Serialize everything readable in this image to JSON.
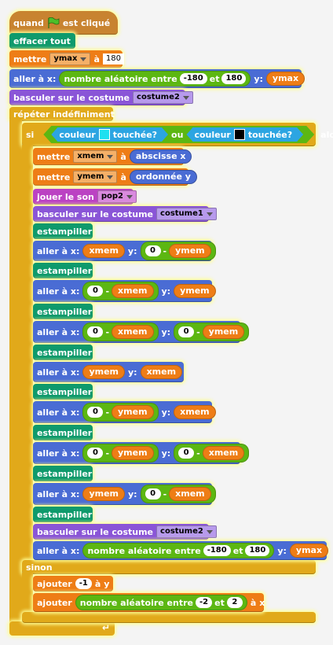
{
  "colors": {
    "events": "#c88330",
    "pen": "#0e9a6c",
    "data": "#ee7d16",
    "motion": "#4a6cd4",
    "looks": "#8a55d7",
    "sound": "#bb42c3",
    "control": "#e1a91a",
    "sensing": "#2ca5e2",
    "operators": "#5cb712",
    "swatch_cyan": "#1ee0f0",
    "swatch_black": "#000000"
  },
  "icons": {
    "flag": "green-flag-icon",
    "dropdown": "dropdown-arrow-icon",
    "loop": "loop-arrow-icon"
  },
  "script": {
    "hat": {
      "quand": "quand",
      "est_clique": "est cliqué"
    },
    "effacer": "effacer tout",
    "mettre1": {
      "label": "mettre",
      "var": "ymax",
      "a": "à",
      "value": "180"
    },
    "aller1": {
      "label": "aller à x:",
      "random": "nombre aléatoire entre",
      "min": "-180",
      "et": "et",
      "max": "180",
      "y": "y:",
      "yvar": "ymax"
    },
    "costume1": {
      "label": "basculer sur le costume",
      "value": "costume2"
    },
    "forever": "répéter indéfiniment",
    "si": "si",
    "couleur1": {
      "label": "couleur",
      "touchee": "touchée?"
    },
    "ou": "ou",
    "couleur2": {
      "label": "couleur",
      "touchee": "touchée?"
    },
    "alors": "alors",
    "mettre_xmem": {
      "label": "mettre",
      "var": "xmem",
      "a": "à",
      "value": "abscisse x"
    },
    "mettre_ymem": {
      "label": "mettre",
      "var": "ymem",
      "a": "à",
      "value": "ordonnée y"
    },
    "jouer": {
      "label": "jouer le son",
      "value": "pop2"
    },
    "costume2": {
      "label": "basculer sur le costume",
      "value": "costume1"
    },
    "estampiller": "estampiller",
    "aller_x": "aller à x:",
    "y": "y:",
    "xmem": "xmem",
    "ymem": "ymem",
    "zero": "0",
    "minus": "-",
    "costume3": {
      "label": "basculer sur le costume",
      "value": "costume2"
    },
    "aller_last": {
      "label": "aller à x:",
      "random": "nombre aléatoire entre",
      "min": "-180",
      "et": "et",
      "max": "180",
      "y": "y:",
      "yvar": "ymax"
    },
    "sinon": "sinon",
    "ajouter1": {
      "label": "ajouter",
      "value": "-1",
      "a": "à",
      "var": "y"
    },
    "ajouter2": {
      "label": "ajouter",
      "random": "nombre aléatoire entre",
      "min": "-2",
      "et": "et",
      "max": "2",
      "a": "à",
      "var": "x"
    }
  }
}
